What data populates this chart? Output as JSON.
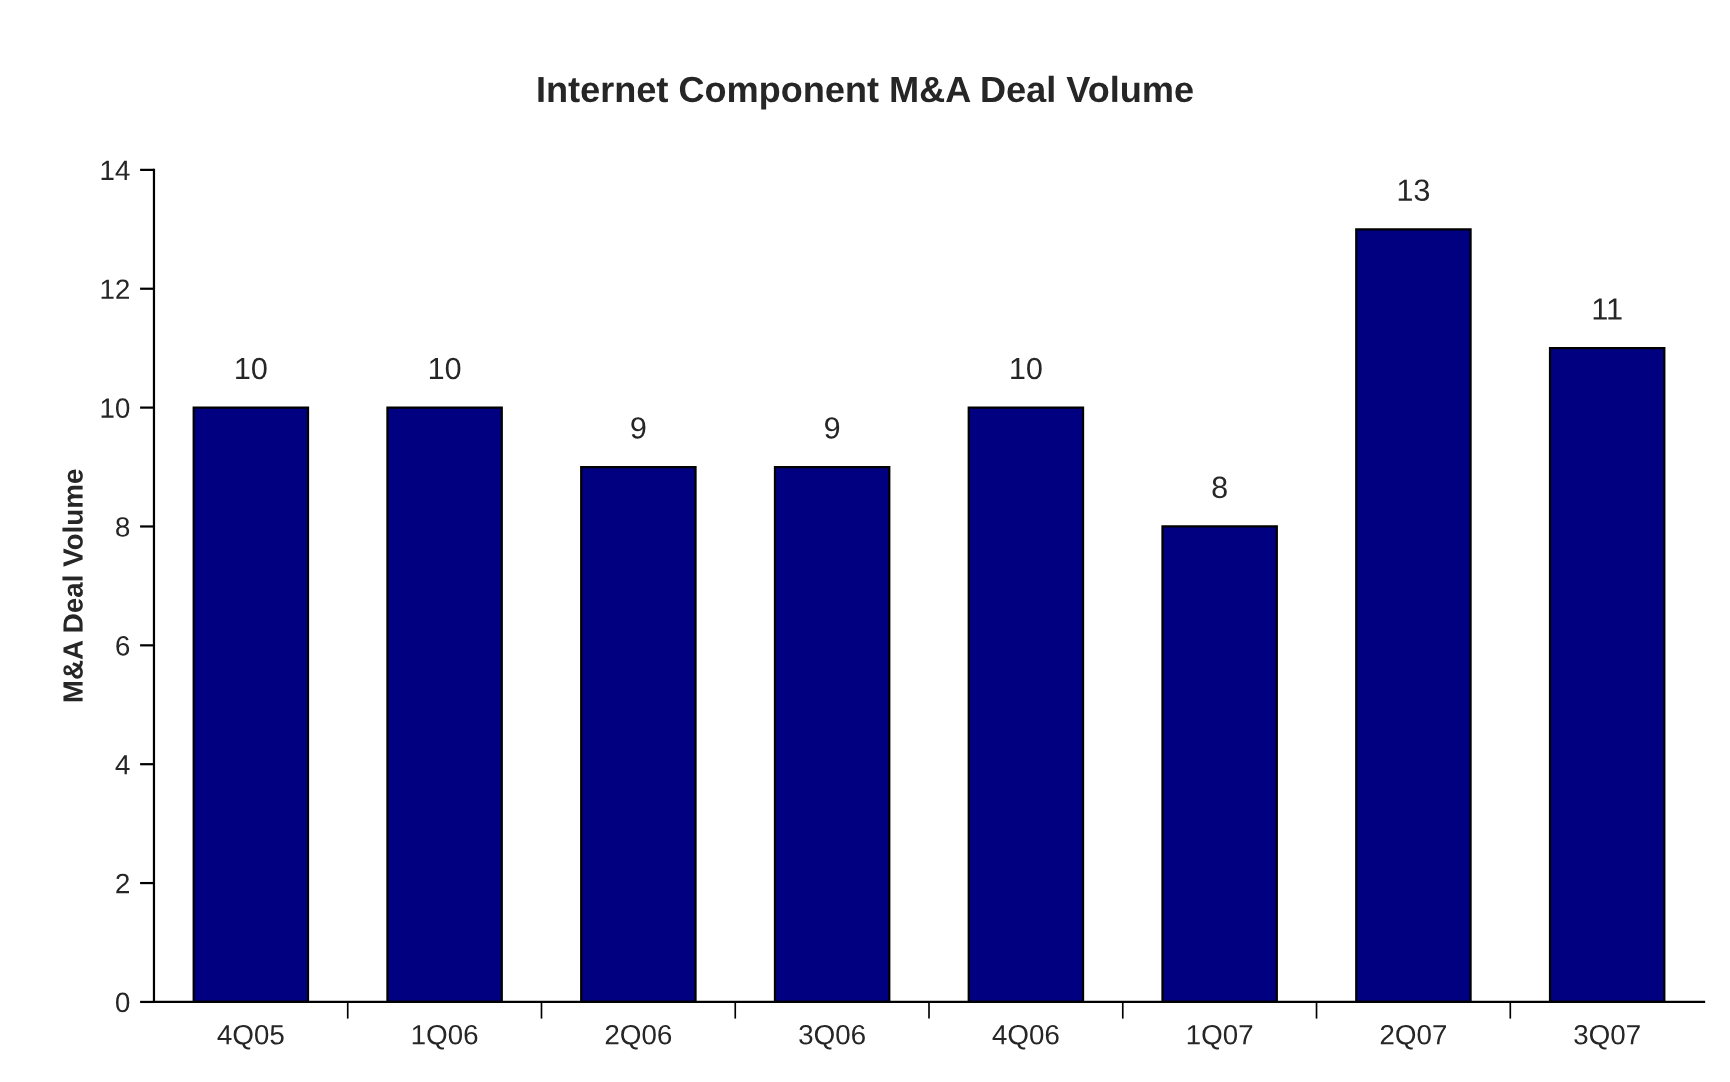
{
  "chart_data": {
    "type": "bar",
    "title": "Internet Component M&A Deal Volume",
    "ylabel": "M&A Deal Volume",
    "categories": [
      "4Q05",
      "1Q06",
      "2Q06",
      "3Q06",
      "4Q06",
      "1Q07",
      "2Q07",
      "3Q07"
    ],
    "values": [
      10,
      10,
      9,
      9,
      10,
      8,
      13,
      11
    ],
    "color": "#000080",
    "ylim": [
      0,
      14
    ],
    "yticks": [
      0,
      2,
      4,
      6,
      8,
      10,
      12,
      14
    ],
    "grid": false,
    "data_labels": true
  }
}
